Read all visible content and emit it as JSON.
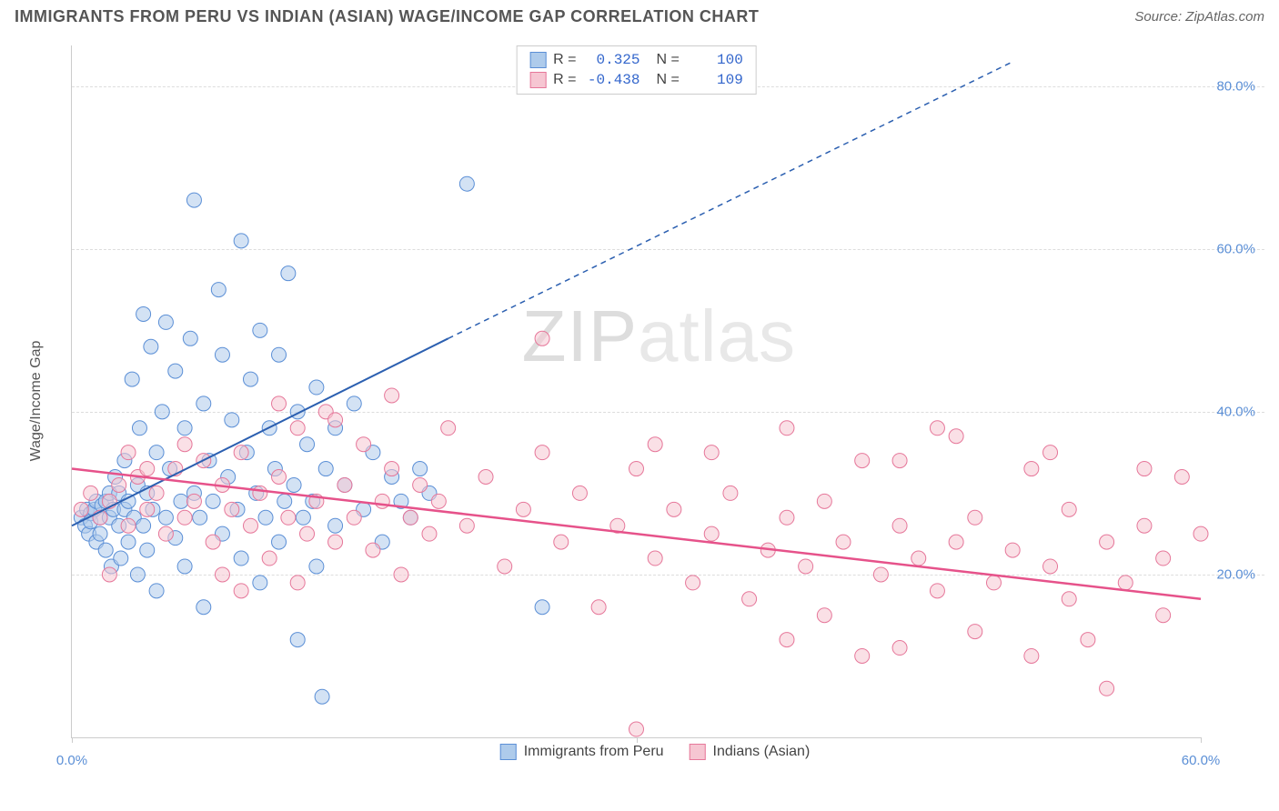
{
  "header": {
    "title": "IMMIGRANTS FROM PERU VS INDIAN (ASIAN) WAGE/INCOME GAP CORRELATION CHART",
    "source_label": "Source:",
    "source_value": "ZipAtlas.com"
  },
  "watermark": {
    "part1": "ZIP",
    "part2": "atlas"
  },
  "chart": {
    "type": "scatter",
    "y_axis_label": "Wage/Income Gap",
    "xlim": [
      0,
      60
    ],
    "ylim": [
      0,
      85
    ],
    "x_ticks": [
      0,
      30,
      60
    ],
    "x_tick_labels": [
      "0.0%",
      "",
      "60.0%"
    ],
    "y_ticks": [
      20,
      40,
      60,
      80
    ],
    "y_tick_labels": [
      "20.0%",
      "40.0%",
      "60.0%",
      "80.0%"
    ],
    "grid_color": "#dddddd",
    "axis_color": "#cccccc",
    "background_color": "#ffffff",
    "tick_label_color": "#5b8fd6",
    "tick_fontsize": 15,
    "axis_label_fontsize": 16,
    "axis_label_color": "#555555",
    "stats": [
      {
        "color_fill": "#aecbeb",
        "color_border": "#5b8fd6",
        "r_label": "R =",
        "r_value": "0.325",
        "n_label": "N =",
        "n_value": "100"
      },
      {
        "color_fill": "#f6c6d2",
        "color_border": "#e6779a",
        "r_label": "R =",
        "r_value": "-0.438",
        "n_label": "N =",
        "n_value": "109"
      }
    ],
    "legend": [
      {
        "swatch_fill": "#aecbeb",
        "swatch_border": "#5b8fd6",
        "label": "Immigrants from Peru"
      },
      {
        "swatch_fill": "#f6c6d2",
        "swatch_border": "#e6779a",
        "label": "Indians (Asian)"
      }
    ],
    "marker_radius": 8,
    "marker_opacity": 0.55,
    "series": [
      {
        "name": "peru",
        "fill": "#aecbeb",
        "stroke": "#5b8fd6",
        "trend": {
          "solid": [
            [
              0,
              26
            ],
            [
              20,
              49
            ]
          ],
          "dashed": [
            [
              20,
              49
            ],
            [
              50,
              83
            ]
          ],
          "color": "#2b5fb0",
          "width": 2
        },
        "points": [
          [
            0.5,
            27
          ],
          [
            0.7,
            26
          ],
          [
            0.8,
            28
          ],
          [
            0.9,
            25
          ],
          [
            1,
            27.5
          ],
          [
            1,
            26.5
          ],
          [
            1.2,
            28
          ],
          [
            1.3,
            29
          ],
          [
            1.3,
            24
          ],
          [
            1.5,
            27
          ],
          [
            1.5,
            25
          ],
          [
            1.6,
            28.5
          ],
          [
            1.8,
            29
          ],
          [
            1.8,
            23
          ],
          [
            2,
            30
          ],
          [
            2,
            27
          ],
          [
            2.1,
            21
          ],
          [
            2.2,
            28
          ],
          [
            2.3,
            32
          ],
          [
            2.5,
            26
          ],
          [
            2.5,
            30
          ],
          [
            2.6,
            22
          ],
          [
            2.8,
            28
          ],
          [
            2.8,
            34
          ],
          [
            3,
            24
          ],
          [
            3,
            29
          ],
          [
            3.2,
            44
          ],
          [
            3.3,
            27
          ],
          [
            3.5,
            31
          ],
          [
            3.5,
            20
          ],
          [
            3.6,
            38
          ],
          [
            3.8,
            26
          ],
          [
            3.8,
            52
          ],
          [
            4,
            30
          ],
          [
            4,
            23
          ],
          [
            4.2,
            48
          ],
          [
            4.3,
            28
          ],
          [
            4.5,
            35
          ],
          [
            4.5,
            18
          ],
          [
            4.8,
            40
          ],
          [
            5,
            27
          ],
          [
            5,
            51
          ],
          [
            5.2,
            33
          ],
          [
            5.5,
            24.5
          ],
          [
            5.5,
            45
          ],
          [
            5.8,
            29
          ],
          [
            6,
            38
          ],
          [
            6,
            21
          ],
          [
            6.3,
            49
          ],
          [
            6.5,
            30
          ],
          [
            6.5,
            66
          ],
          [
            6.8,
            27
          ],
          [
            7,
            41
          ],
          [
            7,
            16
          ],
          [
            7.3,
            34
          ],
          [
            7.5,
            29
          ],
          [
            7.8,
            55
          ],
          [
            8,
            25
          ],
          [
            8,
            47
          ],
          [
            8.3,
            32
          ],
          [
            8.5,
            39
          ],
          [
            8.8,
            28
          ],
          [
            9,
            61
          ],
          [
            9,
            22
          ],
          [
            9.3,
            35
          ],
          [
            9.5,
            44
          ],
          [
            9.8,
            30
          ],
          [
            10,
            50
          ],
          [
            10,
            19
          ],
          [
            10.3,
            27
          ],
          [
            10.5,
            38
          ],
          [
            10.8,
            33
          ],
          [
            11,
            47
          ],
          [
            11,
            24
          ],
          [
            11.3,
            29
          ],
          [
            11.5,
            57
          ],
          [
            11.8,
            31
          ],
          [
            12,
            40
          ],
          [
            12,
            12
          ],
          [
            12.3,
            27
          ],
          [
            12.5,
            36
          ],
          [
            12.8,
            29
          ],
          [
            13,
            43
          ],
          [
            13,
            21
          ],
          [
            13.3,
            5
          ],
          [
            13.5,
            33
          ],
          [
            14,
            38
          ],
          [
            14,
            26
          ],
          [
            14.5,
            31
          ],
          [
            15,
            41
          ],
          [
            15.5,
            28
          ],
          [
            16,
            35
          ],
          [
            16.5,
            24
          ],
          [
            17,
            32
          ],
          [
            17.5,
            29
          ],
          [
            18,
            27
          ],
          [
            18.5,
            33
          ],
          [
            19,
            30
          ],
          [
            21,
            68
          ],
          [
            25,
            16
          ]
        ]
      },
      {
        "name": "indian",
        "fill": "#f6c6d2",
        "stroke": "#e6779a",
        "trend": {
          "solid": [
            [
              0,
              33
            ],
            [
              60,
              17
            ]
          ],
          "dashed": null,
          "color": "#e6528a",
          "width": 2.5
        },
        "points": [
          [
            0.5,
            28
          ],
          [
            1,
            30
          ],
          [
            1.5,
            27
          ],
          [
            2,
            29
          ],
          [
            2.5,
            31
          ],
          [
            3,
            26
          ],
          [
            3.5,
            32
          ],
          [
            4,
            28
          ],
          [
            4.5,
            30
          ],
          [
            5,
            25
          ],
          [
            5.5,
            33
          ],
          [
            6,
            27
          ],
          [
            6.5,
            29
          ],
          [
            7,
            34
          ],
          [
            7.5,
            24
          ],
          [
            8,
            31
          ],
          [
            8.5,
            28
          ],
          [
            9,
            35
          ],
          [
            9.5,
            26
          ],
          [
            10,
            30
          ],
          [
            10.5,
            22
          ],
          [
            11,
            32
          ],
          [
            11.5,
            27
          ],
          [
            12,
            38
          ],
          [
            12.5,
            25
          ],
          [
            13,
            29
          ],
          [
            13.5,
            40
          ],
          [
            14,
            24
          ],
          [
            14.5,
            31
          ],
          [
            15,
            27
          ],
          [
            15.5,
            36
          ],
          [
            16,
            23
          ],
          [
            16.5,
            29
          ],
          [
            17,
            33
          ],
          [
            17.5,
            20
          ],
          [
            18,
            27
          ],
          [
            18.5,
            31
          ],
          [
            19,
            25
          ],
          [
            19.5,
            29
          ],
          [
            20,
            38
          ],
          [
            21,
            26
          ],
          [
            22,
            32
          ],
          [
            23,
            21
          ],
          [
            24,
            28
          ],
          [
            25,
            35
          ],
          [
            25,
            49
          ],
          [
            26,
            24
          ],
          [
            27,
            30
          ],
          [
            28,
            16
          ],
          [
            29,
            26
          ],
          [
            30,
            33
          ],
          [
            30,
            1
          ],
          [
            31,
            22
          ],
          [
            32,
            28
          ],
          [
            33,
            19
          ],
          [
            34,
            25
          ],
          [
            34,
            35
          ],
          [
            35,
            30
          ],
          [
            36,
            17
          ],
          [
            37,
            23
          ],
          [
            38,
            27
          ],
          [
            38,
            12
          ],
          [
            39,
            21
          ],
          [
            40,
            29
          ],
          [
            40,
            15
          ],
          [
            41,
            24
          ],
          [
            42,
            10
          ],
          [
            42,
            34
          ],
          [
            43,
            20
          ],
          [
            44,
            26
          ],
          [
            44,
            11
          ],
          [
            45,
            22
          ],
          [
            46,
            18
          ],
          [
            46,
            38
          ],
          [
            47,
            24
          ],
          [
            48,
            13
          ],
          [
            48,
            27
          ],
          [
            49,
            19
          ],
          [
            50,
            23
          ],
          [
            51,
            10
          ],
          [
            51,
            33
          ],
          [
            52,
            21
          ],
          [
            53,
            17
          ],
          [
            53,
            28
          ],
          [
            54,
            12
          ],
          [
            55,
            24
          ],
          [
            55,
            6
          ],
          [
            56,
            19
          ],
          [
            57,
            26
          ],
          [
            57,
            33
          ],
          [
            58,
            15
          ],
          [
            58,
            22
          ],
          [
            59,
            32
          ],
          [
            60,
            25
          ],
          [
            47,
            37
          ],
          [
            52,
            35
          ],
          [
            38,
            38
          ],
          [
            31,
            36
          ],
          [
            44,
            34
          ],
          [
            8,
            20
          ],
          [
            11,
            41
          ],
          [
            14,
            39
          ],
          [
            17,
            42
          ],
          [
            6,
            36
          ],
          [
            4,
            33
          ],
          [
            3,
            35
          ],
          [
            2,
            20
          ],
          [
            9,
            18
          ],
          [
            12,
            19
          ]
        ]
      }
    ]
  }
}
